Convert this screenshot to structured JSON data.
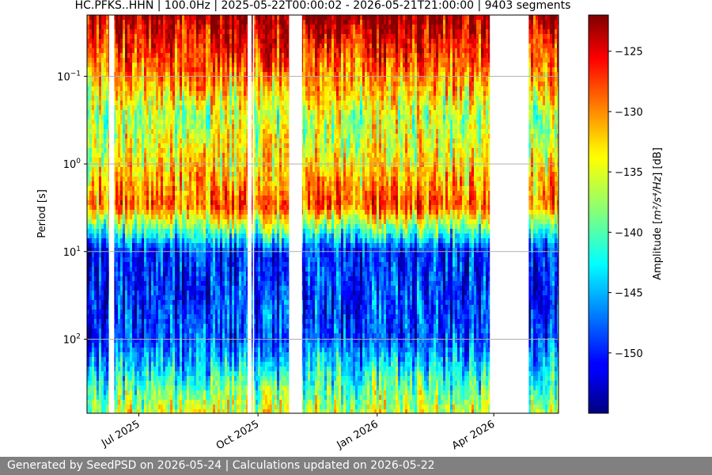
{
  "chart_data": {
    "type": "heatmap",
    "title": "HC.PFKS..HHN | 100.0Hz | 2025-05-22T00:00:02 - 2026-05-21T21:00:00 | 9403 segments",
    "xlabel": "",
    "ylabel": "Period [s]",
    "x_range": [
      "2025-05-22",
      "2026-05-21"
    ],
    "x_ticks": [
      {
        "date": "2025-07-01",
        "label": "Jul 2025"
      },
      {
        "date": "2025-10-01",
        "label": "Oct 2025"
      },
      {
        "date": "2026-01-01",
        "label": "Jan 2026"
      },
      {
        "date": "2026-04-01",
        "label": "Apr 2026"
      }
    ],
    "y_scale": "log",
    "y_range_s": [
      0.02,
      700
    ],
    "y_inverted": true,
    "y_ticks": [
      {
        "value": 0.1,
        "base": "10",
        "exp": "−1"
      },
      {
        "value": 1,
        "base": "10",
        "exp": "0"
      },
      {
        "value": 10,
        "base": "10",
        "exp": "1"
      },
      {
        "value": 100,
        "base": "10",
        "exp": "2"
      }
    ],
    "grid": true,
    "colorbar": {
      "label_prefix": "Amplitude [",
      "label_math": "m²/s⁴/Hz",
      "label_suffix": "] [dB]",
      "colormap": "jet",
      "range_db": [
        -155,
        -122
      ],
      "ticks": [
        "−125",
        "−130",
        "−135",
        "−140",
        "−145",
        "−150"
      ],
      "tick_values": [
        -125,
        -130,
        -135,
        -140,
        -145,
        -150
      ]
    },
    "data_gaps": [
      [
        "2025-06-08",
        "2025-06-12"
      ],
      [
        "2025-09-23",
        "2025-09-26"
      ],
      [
        "2025-09-27",
        "2025-09-28"
      ],
      [
        "2025-10-25",
        "2025-11-04"
      ],
      [
        "2026-03-29",
        "2026-04-28"
      ]
    ],
    "period_profile": [
      {
        "period_s": 0.02,
        "amplitude_db": -123
      },
      {
        "period_s": 0.1,
        "amplitude_db": -131
      },
      {
        "period_s": 0.3,
        "amplitude_db": -137
      },
      {
        "period_s": 1,
        "amplitude_db": -134
      },
      {
        "period_s": 3,
        "amplitude_db": -129
      },
      {
        "period_s": 10,
        "amplitude_db": -150
      },
      {
        "period_s": 100,
        "amplitude_db": -149
      },
      {
        "period_s": 300,
        "amplitude_db": -141
      },
      {
        "period_s": 700,
        "amplitude_db": -136
      }
    ]
  },
  "footer": {
    "text": "Generated by SeedPSD on 2026-05-24 | Calculations updated on 2026-05-22"
  }
}
